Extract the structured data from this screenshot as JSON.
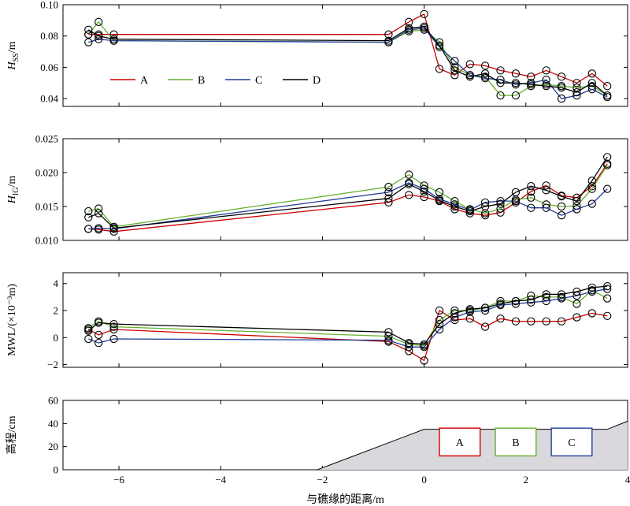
{
  "chart_data": [
    {
      "type": "line",
      "ylabel": "H_SS/m",
      "ylabel_main": "H",
      "ylabel_sub": "SS",
      "ylabel_unit": "/m",
      "ylim": [
        0.035,
        0.1
      ],
      "yticks": [
        "0.04",
        "0.06",
        "0.08",
        "0.10"
      ],
      "ytick_values": [
        0.04,
        0.06,
        0.08,
        0.1
      ],
      "legend": {
        "placement": "lower-left",
        "entries": [
          "A",
          "B",
          "C",
          "D"
        ]
      },
      "series": [
        {
          "name": "A",
          "color": "#cc0000",
          "x": [
            -6.6,
            -6.4,
            -6.1,
            -0.7,
            -0.3,
            0.0,
            0.3,
            0.6,
            0.9,
            1.2,
            1.5,
            1.8,
            2.1,
            2.4,
            2.7,
            3.0,
            3.3,
            3.6
          ],
          "y": [
            0.081,
            0.081,
            0.081,
            0.081,
            0.089,
            0.094,
            0.059,
            0.055,
            0.062,
            0.061,
            0.058,
            0.056,
            0.054,
            0.058,
            0.054,
            0.05,
            0.056,
            0.048
          ]
        },
        {
          "name": "B",
          "color": "#66b02e",
          "x": [
            -6.6,
            -6.4,
            -6.1,
            -0.7,
            -0.3,
            0.0,
            0.3,
            0.6,
            0.9,
            1.2,
            1.5,
            1.8,
            2.1,
            2.4,
            2.7,
            3.0,
            3.3,
            3.6
          ],
          "y": [
            0.081,
            0.089,
            0.077,
            0.076,
            0.083,
            0.084,
            0.076,
            0.06,
            0.055,
            0.054,
            0.042,
            0.042,
            0.048,
            0.049,
            0.048,
            0.047,
            0.048,
            0.042
          ]
        },
        {
          "name": "C",
          "color": "#1f3d99",
          "x": [
            -6.6,
            -6.4,
            -6.1,
            -0.7,
            -0.3,
            0.0,
            0.3,
            0.6,
            0.9,
            1.2,
            1.5,
            1.8,
            2.1,
            2.4,
            2.7,
            3.0,
            3.3,
            3.6
          ],
          "y": [
            0.076,
            0.078,
            0.077,
            0.076,
            0.084,
            0.085,
            0.073,
            0.064,
            0.055,
            0.053,
            0.052,
            0.049,
            0.05,
            0.052,
            0.04,
            0.042,
            0.046,
            0.041
          ]
        },
        {
          "name": "D",
          "color": "#000000",
          "x": [
            -6.6,
            -6.4,
            -6.1,
            -0.7,
            -0.3,
            0.0,
            0.3,
            0.6,
            0.9,
            1.2,
            1.5,
            1.8,
            2.1,
            2.4,
            2.7,
            3.0,
            3.3,
            3.6
          ],
          "y": [
            0.084,
            0.08,
            0.078,
            0.077,
            0.085,
            0.086,
            0.074,
            0.058,
            0.054,
            0.056,
            0.05,
            0.05,
            0.049,
            0.048,
            0.047,
            0.044,
            0.05,
            0.042
          ]
        }
      ]
    },
    {
      "type": "line",
      "ylabel": "H_IG/m",
      "ylabel_main": "H",
      "ylabel_sub": "IG",
      "ylabel_unit": "/m",
      "ylim": [
        0.01,
        0.025
      ],
      "yticks": [
        "0.010",
        "0.015",
        "0.020",
        "0.025"
      ],
      "ytick_values": [
        0.01,
        0.015,
        0.02,
        0.025
      ],
      "series": [
        {
          "name": "A",
          "color": "#cc0000",
          "x": [
            -6.6,
            -6.4,
            -6.1,
            -0.7,
            -0.3,
            0.0,
            0.3,
            0.6,
            0.9,
            1.2,
            1.5,
            1.8,
            2.1,
            2.4,
            2.7,
            3.0,
            3.3,
            3.6
          ],
          "y": [
            0.0117,
            0.0116,
            0.0113,
            0.0156,
            0.0167,
            0.0164,
            0.0158,
            0.0146,
            0.014,
            0.0137,
            0.0141,
            0.0156,
            0.0172,
            0.0181,
            0.0166,
            0.0163,
            0.018,
            0.0213
          ]
        },
        {
          "name": "B",
          "color": "#66b02e",
          "x": [
            -6.6,
            -6.4,
            -6.1,
            -0.7,
            -0.3,
            0.0,
            0.3,
            0.6,
            0.9,
            1.2,
            1.5,
            1.8,
            2.1,
            2.4,
            2.7,
            3.0,
            3.3,
            3.6
          ],
          "y": [
            0.0143,
            0.0147,
            0.012,
            0.0179,
            0.0197,
            0.0181,
            0.0171,
            0.0158,
            0.0146,
            0.014,
            0.0147,
            0.016,
            0.0163,
            0.0153,
            0.015,
            0.0151,
            0.0176,
            0.0211
          ]
        },
        {
          "name": "C",
          "color": "#1f3d99",
          "x": [
            -6.6,
            -6.4,
            -6.1,
            -0.7,
            -0.3,
            0.0,
            0.3,
            0.6,
            0.9,
            1.2,
            1.5,
            1.8,
            2.1,
            2.4,
            2.7,
            3.0,
            3.3,
            3.6
          ],
          "y": [
            0.0117,
            0.0118,
            0.0117,
            0.0171,
            0.0185,
            0.0176,
            0.0161,
            0.0153,
            0.0145,
            0.0156,
            0.0158,
            0.0158,
            0.0148,
            0.0148,
            0.0137,
            0.0146,
            0.0154,
            0.0176
          ]
        },
        {
          "name": "D",
          "color": "#000000",
          "x": [
            -6.6,
            -6.4,
            -6.1,
            -0.7,
            -0.3,
            0.0,
            0.3,
            0.6,
            0.9,
            1.2,
            1.5,
            1.8,
            2.1,
            2.4,
            2.7,
            3.0,
            3.3,
            3.6
          ],
          "y": [
            0.0134,
            0.014,
            0.0118,
            0.0162,
            0.0183,
            0.0172,
            0.0159,
            0.015,
            0.0143,
            0.015,
            0.0154,
            0.0171,
            0.018,
            0.0174,
            0.0165,
            0.0158,
            0.0188,
            0.0223
          ]
        }
      ]
    },
    {
      "type": "line",
      "ylabel": "MWL/(×10⁻³m)",
      "ylim": [
        -2.2,
        4.8
      ],
      "yticks": [
        "−2",
        "0",
        "2",
        "4"
      ],
      "ytick_values": [
        -2,
        0,
        2,
        4
      ],
      "series": [
        {
          "name": "A",
          "color": "#cc0000",
          "x": [
            -6.6,
            -6.4,
            -6.1,
            -0.7,
            -0.3,
            0.0,
            0.3,
            0.6,
            0.9,
            1.2,
            1.5,
            1.8,
            2.1,
            2.4,
            2.7,
            3.0,
            3.3,
            3.6
          ],
          "y": [
            0.6,
            0.2,
            0.6,
            -0.3,
            -1.0,
            -1.7,
            2.0,
            1.3,
            1.4,
            0.8,
            1.4,
            1.2,
            1.2,
            1.2,
            1.2,
            1.5,
            1.8,
            1.6
          ]
        },
        {
          "name": "B",
          "color": "#66b02e",
          "x": [
            -6.6,
            -6.4,
            -6.1,
            -0.7,
            -0.3,
            0.0,
            0.3,
            0.6,
            0.9,
            1.2,
            1.5,
            1.8,
            2.1,
            2.4,
            2.7,
            3.0,
            3.3,
            3.6
          ],
          "y": [
            0.7,
            1.2,
            0.8,
            0.1,
            -0.5,
            -0.6,
            1.3,
            2.0,
            2.0,
            2.2,
            2.7,
            2.7,
            3.1,
            3.0,
            3.0,
            2.5,
            3.5,
            2.9
          ]
        },
        {
          "name": "C",
          "color": "#1f3d99",
          "x": [
            -6.6,
            -6.4,
            -6.1,
            -0.7,
            -0.3,
            0.0,
            0.3,
            0.6,
            0.9,
            1.2,
            1.5,
            1.8,
            2.1,
            2.4,
            2.7,
            3.0,
            3.3,
            3.6
          ],
          "y": [
            -0.1,
            -0.4,
            -0.1,
            -0.2,
            -0.7,
            -0.7,
            0.6,
            1.5,
            1.9,
            2.0,
            2.4,
            2.5,
            2.6,
            2.7,
            2.9,
            3.1,
            3.4,
            3.6
          ]
        },
        {
          "name": "D",
          "color": "#000000",
          "x": [
            -6.6,
            -6.4,
            -6.1,
            -0.7,
            -0.3,
            0.0,
            0.3,
            0.6,
            0.9,
            1.2,
            1.5,
            1.8,
            2.1,
            2.4,
            2.7,
            3.0,
            3.3,
            3.6
          ],
          "y": [
            0.5,
            1.1,
            1.0,
            0.4,
            -0.4,
            -0.5,
            1.0,
            1.8,
            2.1,
            2.2,
            2.5,
            2.7,
            2.8,
            3.2,
            3.2,
            3.4,
            3.7,
            3.8
          ]
        }
      ]
    },
    {
      "type": "area",
      "ylabel": "高程/cm",
      "xlabel": "与礁缘的距离/m",
      "xlim": [
        -7.1,
        4.0
      ],
      "ylim": [
        0,
        60
      ],
      "xticks": [
        "−6",
        "−4",
        "−2",
        "0",
        "2",
        "4"
      ],
      "xtick_values": [
        -6,
        -4,
        -2,
        0,
        2,
        4
      ],
      "yticks": [
        "0",
        "20",
        "40",
        "60"
      ],
      "ytick_values": [
        0,
        20,
        40,
        60
      ],
      "profile": {
        "x": [
          -2.1,
          0.0,
          3.6,
          4.0
        ],
        "y": [
          0,
          35,
          35,
          42
        ]
      },
      "gauge_boxes": [
        {
          "label": "A",
          "color": "#cc0000",
          "x0": 0.3,
          "x1": 1.1,
          "y0": 12,
          "y1": 36
        },
        {
          "label": "B",
          "color": "#66b02e",
          "x0": 1.4,
          "x1": 2.2,
          "y0": 12,
          "y1": 36
        },
        {
          "label": "C",
          "color": "#1f3d99",
          "x0": 2.5,
          "x1": 3.3,
          "y0": 12,
          "y1": 36
        }
      ]
    }
  ]
}
